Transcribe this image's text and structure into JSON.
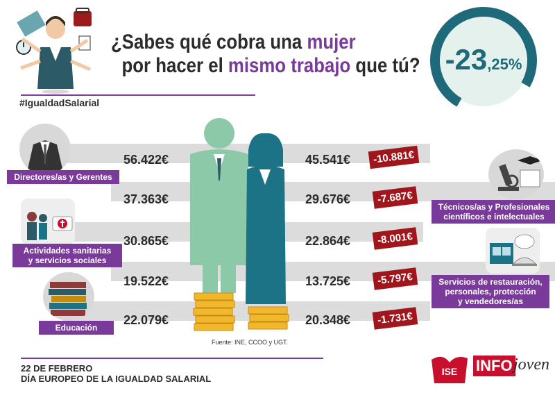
{
  "header": {
    "line1_pre": "¿Sabes qué cobra una ",
    "line1_hl": "mujer",
    "line2_pre": "por hacer el ",
    "line2_hl": "mismo trabajo",
    "line2_post": " que tú?",
    "hashtag": "#IgualdadSalarial"
  },
  "gap": {
    "big": "-23",
    "small": ",25%",
    "value_percent": 23.25
  },
  "rows": [
    {
      "men": "56.422€",
      "women": "45.541€",
      "diff": "-10.881€"
    },
    {
      "men": "37.363€",
      "women": "29.676€",
      "diff": "-7.687€"
    },
    {
      "men": "30.865€",
      "women": "22.864€",
      "diff": "-8.001€"
    },
    {
      "men": "19.522€",
      "women": "13.725€",
      "diff": "-5.797€"
    },
    {
      "men": "22.079€",
      "women": "20.348€",
      "diff": "-1.731€"
    }
  ],
  "categories": {
    "directors": "Directores/as y Gerentes",
    "tecnicos_1": "Técnicos/as y Profesionales",
    "tecnicos_2": "científicos e intelectuales",
    "sanitarias_1": "Actividades sanitarias",
    "sanitarias_2": "y servicios sociales",
    "servicios_1": "Servicios de restauración,",
    "servicios_2": "personales, protección",
    "servicios_3": "y vendedores/as",
    "educacion": "Educación"
  },
  "source": "Fuente: INE, CCOO y UGT.",
  "footer": {
    "line1": "22 DE FEBRERO",
    "line2": "DÍA EUROPEO DE LA IGUALDAD SALARIAL"
  },
  "logos": {
    "ise": "ISE",
    "info": "INFO",
    "joven": "joven"
  },
  "colors": {
    "purple": "#7a3a9a",
    "teal": "#1e6a7a",
    "red": "#a0161c",
    "man": "#8cc9a8",
    "woman": "#1c7386",
    "coin": "#f1b82d"
  }
}
